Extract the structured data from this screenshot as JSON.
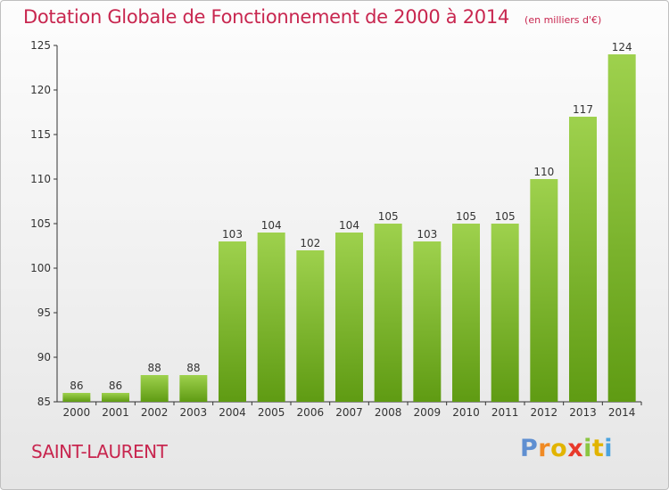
{
  "header": {
    "title": "Dotation Globale de Fonctionnement de 2000 à 2014",
    "unit": "(en milliers d'€)"
  },
  "footer": {
    "city": "SAINT-LAURENT",
    "logo": [
      "P",
      "r",
      "o",
      "x",
      "i",
      "t",
      "i"
    ]
  },
  "colors": {
    "title": "#c8264f",
    "bar_top": "#9ed14d",
    "bar_bottom": "#5f9b13",
    "logo": [
      "#5f8fd1",
      "#f08a24",
      "#e2b400",
      "#e8392b",
      "#8ac641",
      "#e2b400",
      "#4aa3df"
    ]
  },
  "chart_data": {
    "type": "bar",
    "categories": [
      "2000",
      "2001",
      "2002",
      "2003",
      "2004",
      "2005",
      "2006",
      "2007",
      "2008",
      "2009",
      "2010",
      "2011",
      "2012",
      "2013",
      "2014"
    ],
    "values": [
      86,
      86,
      88,
      88,
      103,
      104,
      102,
      104,
      105,
      103,
      105,
      105,
      110,
      117,
      124
    ],
    "ylim": [
      85,
      125
    ],
    "yticks": [
      85,
      90,
      95,
      100,
      105,
      110,
      115,
      120,
      125
    ],
    "grid": false,
    "data_labels": true
  }
}
